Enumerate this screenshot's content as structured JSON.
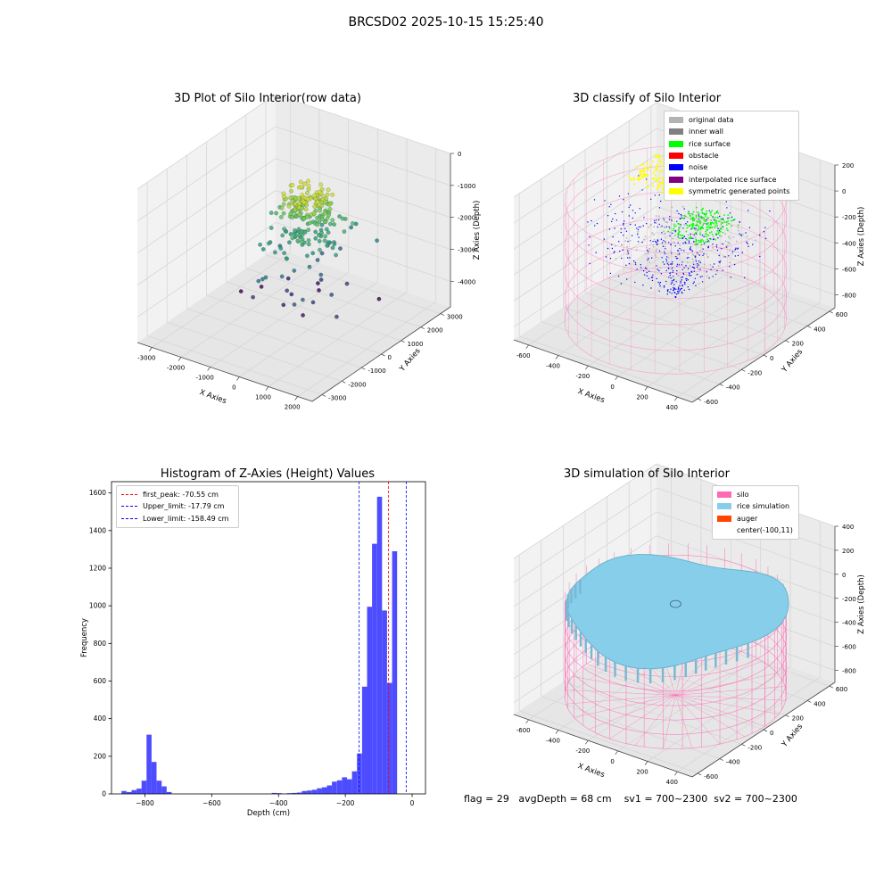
{
  "figure": {
    "suptitle": "BRCSD02 2025-10-15 15:25:40"
  },
  "colors": {
    "original": "#b3b3b3",
    "inner_wall": "#808080",
    "rice_surface": "#00ff00",
    "obstacle": "#ff0000",
    "noise": "#0000ff",
    "interpolated": "#800080",
    "symmetric": "#ffff00",
    "silo": "#ff69b4",
    "rice_sim": "#87ceeb",
    "auger": "#ff4500",
    "hist_bar": "#4d4dff"
  },
  "panels": {
    "raw": {
      "title": "3D Plot of Silo Interior(row data)",
      "xlabel": "X Axies",
      "ylabel": "Y Axies",
      "zlabel": "Z Axies (Depth)"
    },
    "classify": {
      "title": "3D classify of Silo Interior",
      "xlabel": "X Axies",
      "ylabel": "Y Axies",
      "zlabel": "Z Axies (Depth)",
      "legend": [
        "original data",
        "inner wall",
        "rice surface",
        "obstacle",
        "noise",
        "interpolated rice surface",
        "symmetric generated points"
      ]
    },
    "histogram": {
      "title": "Histogram of Z-Axies (Height) Values",
      "xlabel": "Depth (cm)",
      "ylabel": "Frequency",
      "legend": [
        "first_peak: -70.55 cm",
        "Upper_limit: -17.79 cm",
        "Lower_limit: -158.49 cm"
      ]
    },
    "simulation": {
      "title": "3D simulation of Silo Interior",
      "xlabel": "X Axies",
      "ylabel": "Y Axies",
      "zlabel": "Z Axies (Depth)",
      "legend": [
        "silo",
        "rice simulation",
        "auger",
        "center(-100,11)"
      ]
    }
  },
  "status": {
    "flag": "flag = 29",
    "avg_depth": "avgDepth = 68 cm",
    "sv1": "sv1 = 700~2300",
    "sv2": "sv2 = 700~2300"
  },
  "chart_data": [
    {
      "type": "scatter",
      "title": "3D Plot of Silo Interior(row data)",
      "xlabel": "X Axies",
      "ylabel": "Y Axies",
      "zlabel": "Z Axies (Depth)",
      "xlim": [
        -3500,
        2500
      ],
      "ylim": [
        -3500,
        3500
      ],
      "zlim": [
        -4800,
        0
      ],
      "x_ticks": [
        -3000,
        -2000,
        -1000,
        0,
        1000,
        2000
      ],
      "y_ticks": [
        -3000,
        -2000,
        -1000,
        0,
        1000,
        2000,
        3000
      ],
      "z_ticks": [
        0,
        -1000,
        -2000,
        -3000,
        -4000
      ],
      "colormap": "viridis (by depth)",
      "grid": true
    },
    {
      "type": "scatter",
      "title": "3D classify of Silo Interior",
      "xlabel": "X Axies",
      "ylabel": "Y Axies",
      "zlabel": "Z Axies (Depth)",
      "xlim": [
        -700,
        500
      ],
      "ylim": [
        -650,
        650
      ],
      "zlim": [
        -900,
        200
      ],
      "x_ticks": [
        -600,
        -400,
        -200,
        0,
        200,
        400
      ],
      "y_ticks": [
        -600,
        -400,
        -200,
        0,
        200,
        400,
        600
      ],
      "z_ticks": [
        200,
        0,
        -200,
        -400,
        -600,
        -800
      ],
      "series": [
        {
          "name": "original data"
        },
        {
          "name": "inner wall"
        },
        {
          "name": "rice surface"
        },
        {
          "name": "obstacle"
        },
        {
          "name": "noise"
        },
        {
          "name": "interpolated rice surface"
        },
        {
          "name": "symmetric generated points"
        }
      ],
      "legend_position": "top-right",
      "grid": true
    },
    {
      "type": "bar",
      "title": "Histogram of Z-Axies (Height) Values",
      "xlabel": "Depth (cm)",
      "ylabel": "Frequency",
      "xlim": [
        -900,
        40
      ],
      "ylim": [
        0,
        1660
      ],
      "x_ticks": [
        -800,
        -600,
        -400,
        -200,
        0
      ],
      "y_ticks": [
        0,
        200,
        400,
        600,
        800,
        1000,
        1200,
        1400,
        1600
      ],
      "bin_width": 15,
      "bins": [
        [
          -870,
          15
        ],
        [
          -855,
          10
        ],
        [
          -840,
          20
        ],
        [
          -825,
          28
        ],
        [
          -810,
          70
        ],
        [
          -795,
          315
        ],
        [
          -780,
          170
        ],
        [
          -765,
          70
        ],
        [
          -750,
          40
        ],
        [
          -735,
          10
        ],
        [
          -420,
          5
        ],
        [
          -405,
          4
        ],
        [
          -375,
          4
        ],
        [
          -360,
          5
        ],
        [
          -345,
          7
        ],
        [
          -330,
          15
        ],
        [
          -315,
          18
        ],
        [
          -300,
          22
        ],
        [
          -285,
          30
        ],
        [
          -270,
          35
        ],
        [
          -255,
          45
        ],
        [
          -240,
          65
        ],
        [
          -225,
          72
        ],
        [
          -210,
          88
        ],
        [
          -195,
          78
        ],
        [
          -180,
          120
        ],
        [
          -165,
          215
        ],
        [
          -150,
          570
        ],
        [
          -135,
          995
        ],
        [
          -120,
          1330
        ],
        [
          -105,
          1580
        ],
        [
          -90,
          975
        ],
        [
          -75,
          590
        ],
        [
          -60,
          1290
        ]
      ],
      "vlines": [
        {
          "name": "first_peak: -70.55 cm",
          "x": -70.55,
          "color": "red"
        },
        {
          "name": "Upper_limit: -17.79 cm",
          "x": -17.79,
          "color": "blue"
        },
        {
          "name": "Lower_limit: -158.49 cm",
          "x": -158.49,
          "color": "blue"
        }
      ],
      "legend_position": "top-left"
    },
    {
      "type": "scatter",
      "title": "3D simulation of Silo Interior",
      "xlabel": "X Axies",
      "ylabel": "Y Axies",
      "zlabel": "Z Axies (Depth)",
      "xlim": [
        -700,
        500
      ],
      "ylim": [
        -650,
        650
      ],
      "zlim": [
        -900,
        400
      ],
      "x_ticks": [
        -600,
        -400,
        -200,
        0,
        200,
        400
      ],
      "y_ticks": [
        -600,
        -400,
        -200,
        0,
        200,
        400,
        600
      ],
      "z_ticks": [
        400,
        200,
        0,
        -200,
        -400,
        -600,
        -800
      ],
      "series": [
        {
          "name": "silo"
        },
        {
          "name": "rice simulation"
        },
        {
          "name": "auger"
        },
        {
          "name": "center(-100,11)"
        }
      ],
      "legend_position": "top-right",
      "grid": true
    }
  ]
}
